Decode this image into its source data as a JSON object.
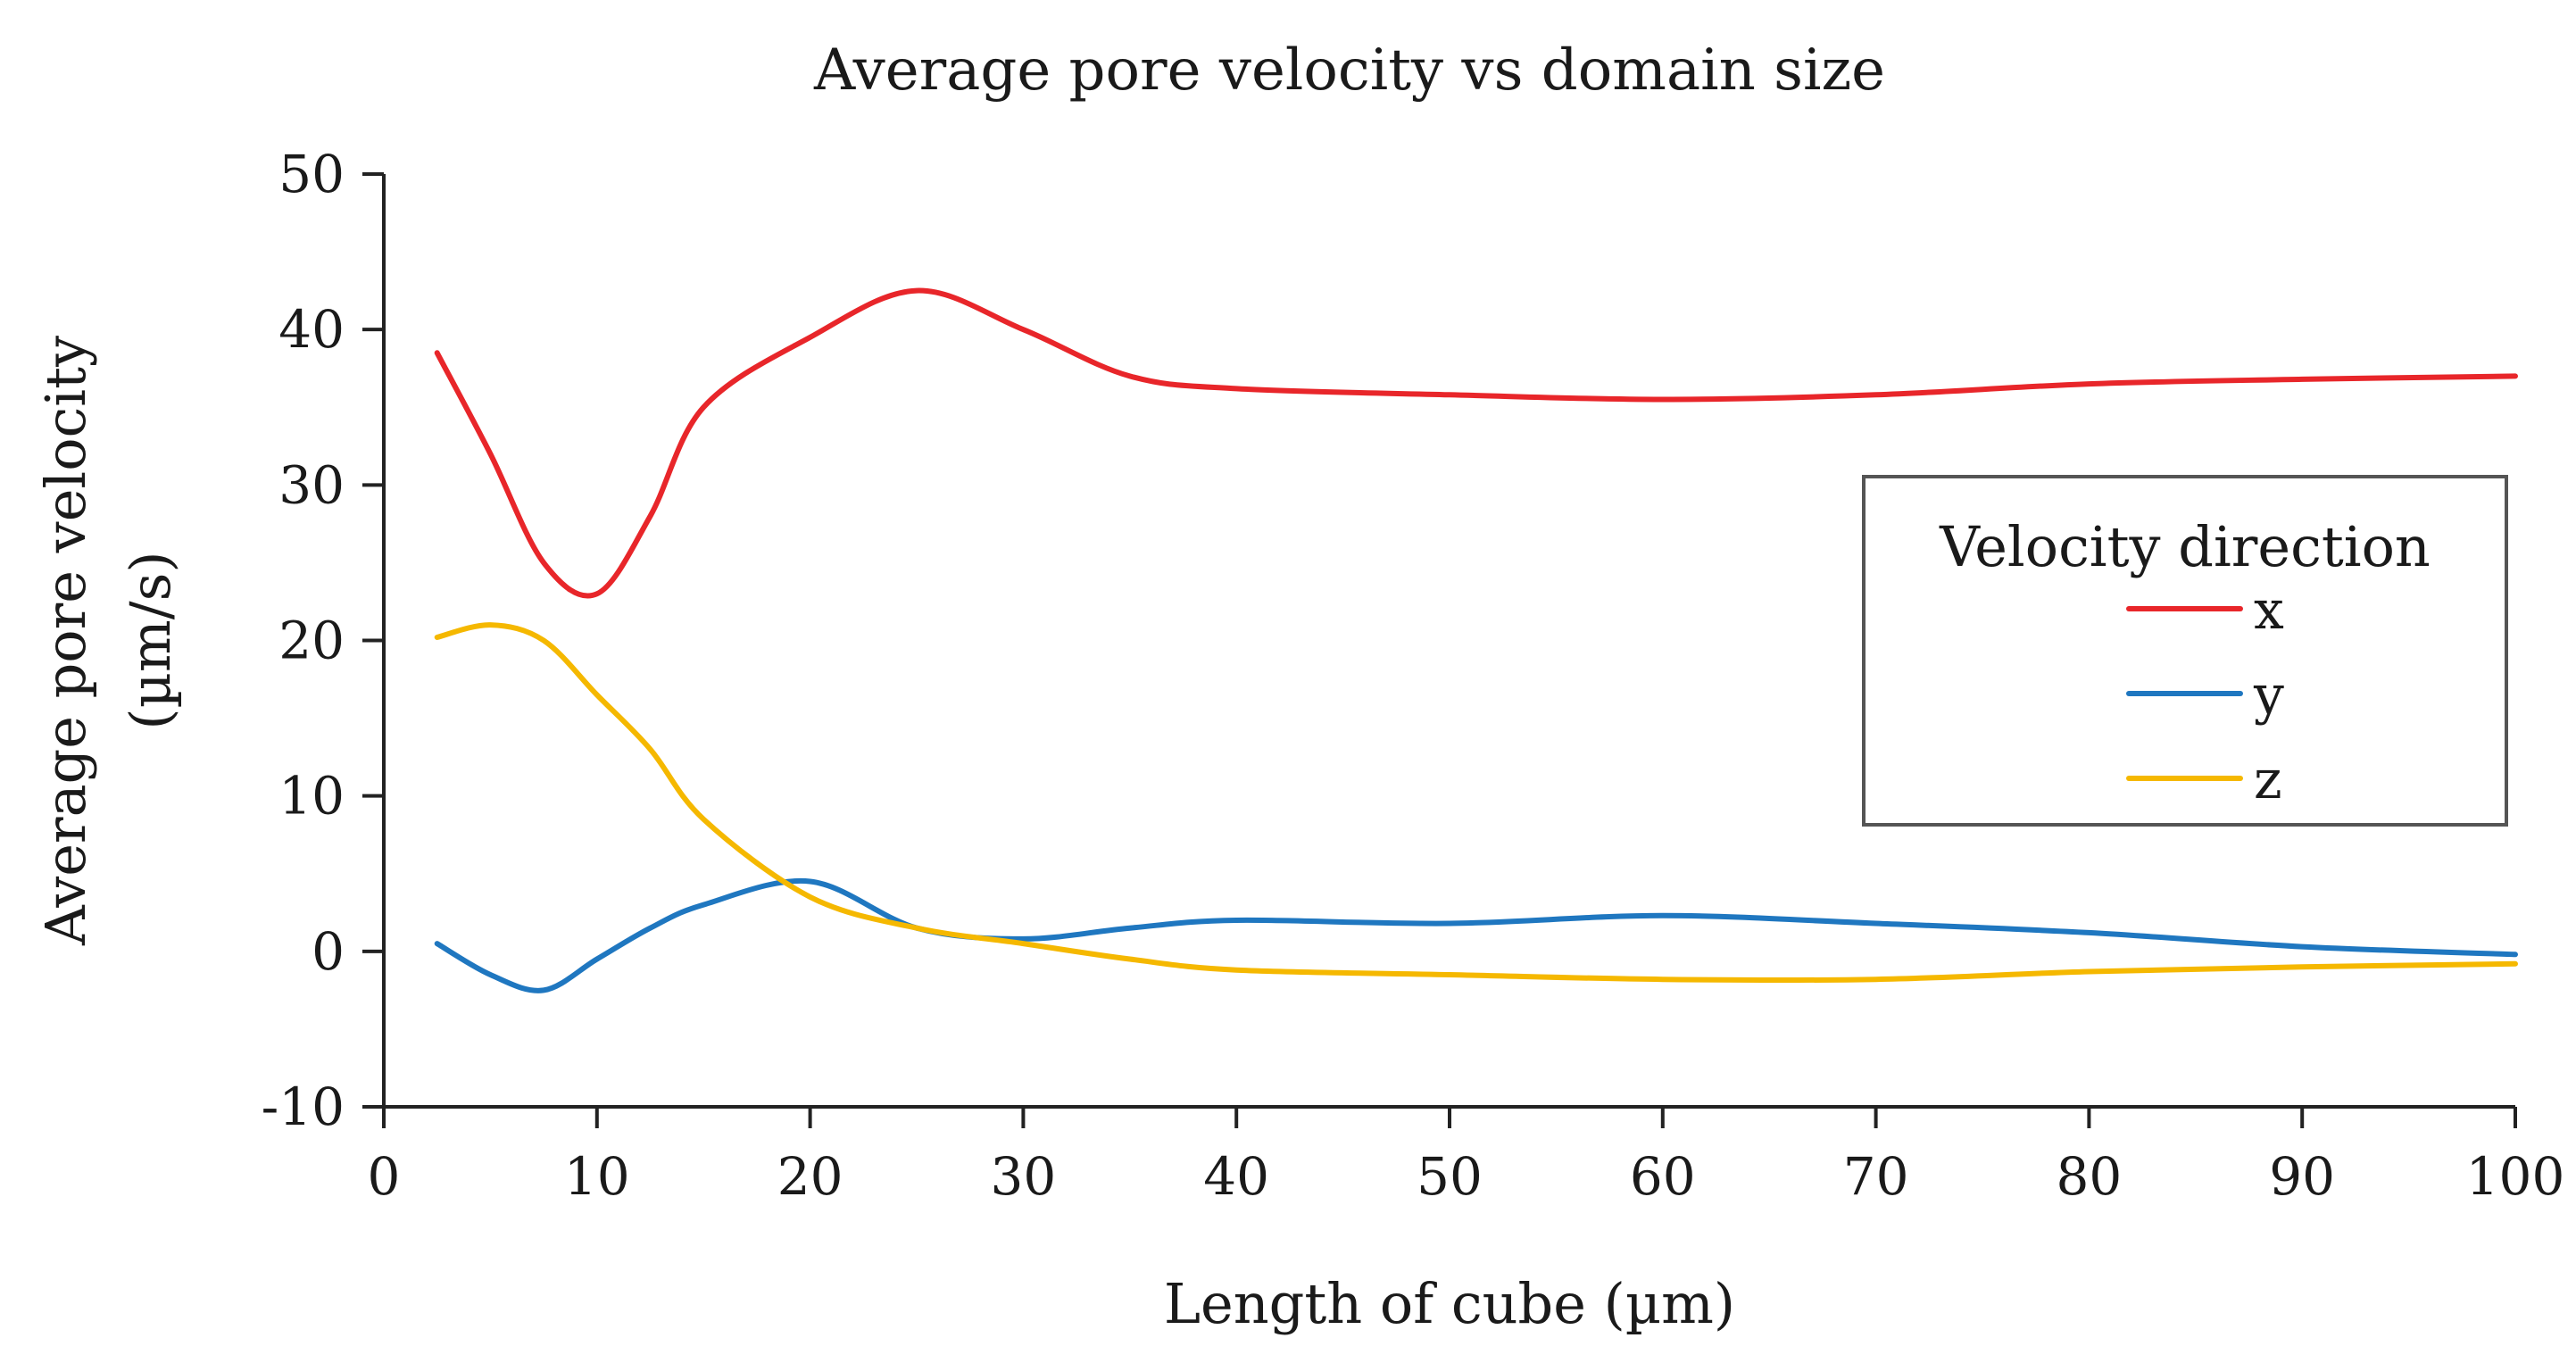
{
  "chart_data": {
    "type": "line",
    "title": "Average pore velocity vs domain size",
    "xlabel": "Length of cube (µm)",
    "ylabel_line1": "Average pore velocity",
    "ylabel_line2": "(µm/s)",
    "xlim": [
      0,
      100
    ],
    "ylim": [
      -10,
      50
    ],
    "xticks": [
      0,
      10,
      20,
      30,
      40,
      50,
      60,
      70,
      80,
      90,
      100
    ],
    "yticks": [
      -10,
      0,
      10,
      20,
      30,
      40,
      50
    ],
    "xtick_labels": [
      "0",
      "10",
      "20",
      "30",
      "40",
      "50",
      "60",
      "70",
      "80",
      "90",
      "100"
    ],
    "ytick_labels": [
      "-10",
      "0",
      "10",
      "20",
      "30",
      "40",
      "50"
    ],
    "grid": false,
    "legend": {
      "title": "Velocity direction",
      "position": "right"
    },
    "series": [
      {
        "name": "x",
        "color": "#e8262a",
        "x": [
          2.5,
          5,
          7.5,
          10,
          12.5,
          15,
          20,
          25,
          30,
          35,
          40,
          50,
          60,
          70,
          80,
          90,
          100
        ],
        "values": [
          38.5,
          32,
          25,
          23,
          28,
          35,
          39.5,
          42.5,
          40,
          37,
          36.2,
          35.8,
          35.5,
          35.8,
          36.5,
          36.8,
          37
        ]
      },
      {
        "name": "y",
        "color": "#1f77c0",
        "x": [
          2.5,
          5,
          7.5,
          10,
          12.5,
          15,
          20,
          25,
          30,
          35,
          40,
          50,
          60,
          70,
          80,
          90,
          100
        ],
        "values": [
          0.5,
          -1.5,
          -2.5,
          -0.5,
          1.5,
          3,
          4.5,
          1.5,
          0.8,
          1.5,
          2,
          1.8,
          2.3,
          1.8,
          1.2,
          0.3,
          -0.2
        ]
      },
      {
        "name": "z",
        "color": "#f5b800",
        "x": [
          2.5,
          5,
          7.5,
          10,
          12.5,
          15,
          20,
          25,
          30,
          35,
          40,
          50,
          60,
          70,
          80,
          90,
          100
        ],
        "values": [
          20.2,
          21,
          20,
          16.5,
          13,
          8.5,
          3.5,
          1.5,
          0.5,
          -0.5,
          -1.2,
          -1.5,
          -1.8,
          -1.8,
          -1.3,
          -1,
          -0.8
        ]
      }
    ]
  }
}
